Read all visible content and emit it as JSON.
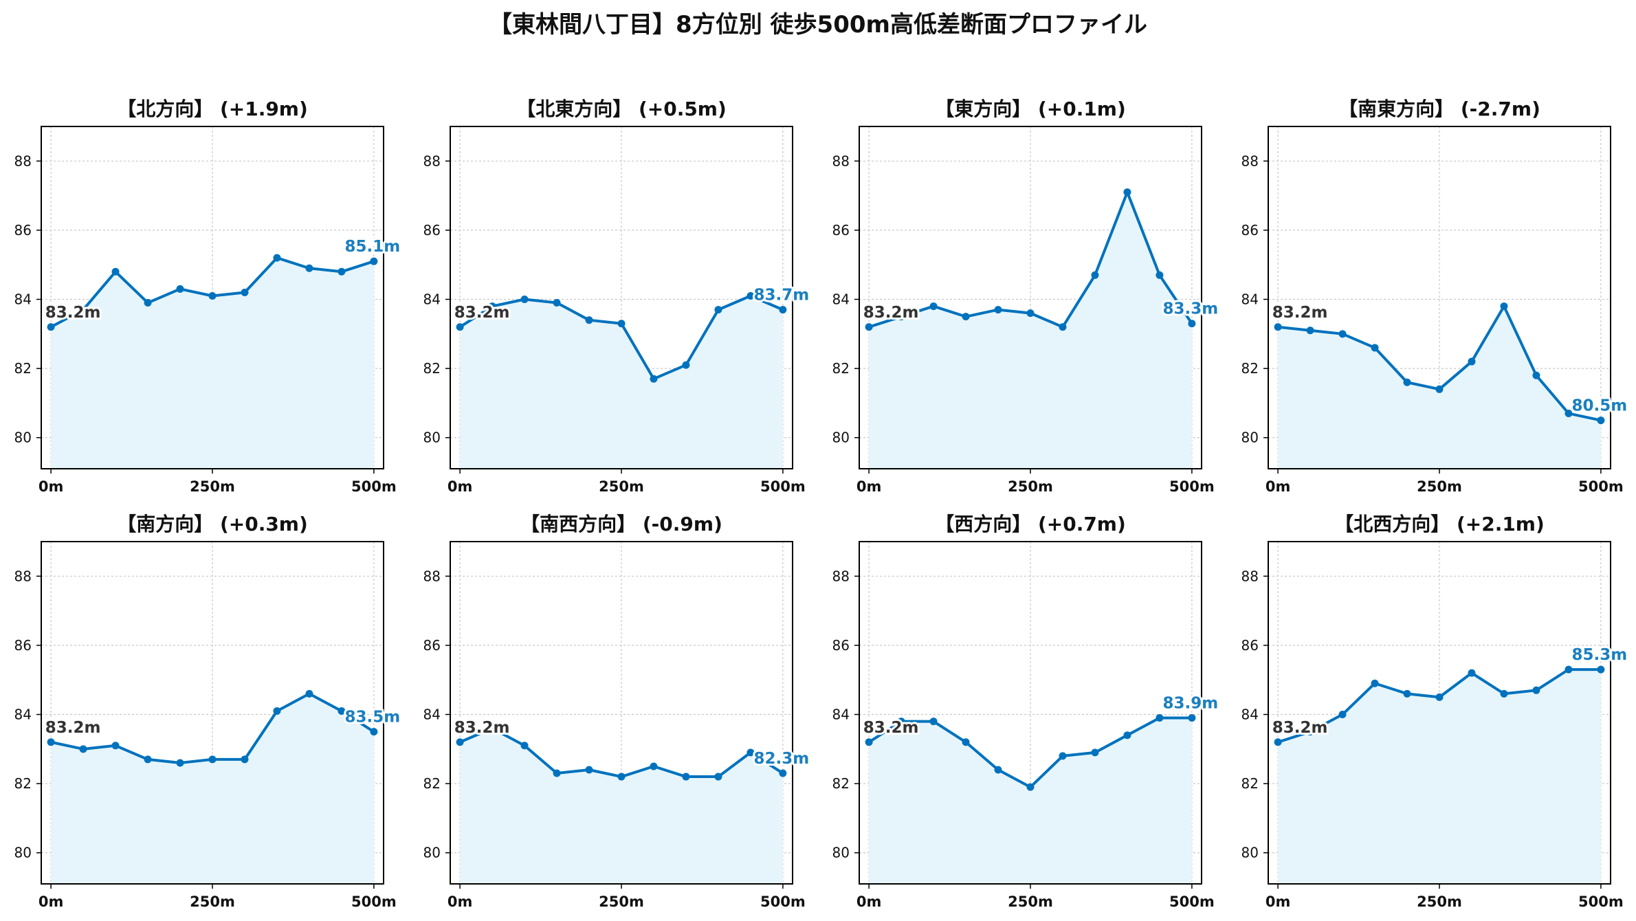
{
  "title": "【東林間八丁目】8方位別 徒歩500m高低差断面プロファイル",
  "colors": {
    "line": "#0072bd",
    "fill": "#e6f5fb",
    "axis": "#000000",
    "grid": "#c8c8c8",
    "start_label": "#333333",
    "end_label": "#1a7fc0"
  },
  "chart_data": [
    {
      "type": "line",
      "title": "【北方向】 (+1.9m)",
      "x": [
        0,
        50,
        100,
        150,
        200,
        250,
        300,
        350,
        400,
        450,
        500
      ],
      "y": [
        83.2,
        83.7,
        84.8,
        83.9,
        84.3,
        84.1,
        84.2,
        85.2,
        84.9,
        84.8,
        85.1
      ],
      "start_label": "83.2m",
      "end_label": "85.1m",
      "xticks": [
        "0m",
        "250m",
        "500m"
      ],
      "yticks": [
        "80",
        "82",
        "84",
        "86",
        "88"
      ],
      "xlim": [
        -15,
        515
      ],
      "ylim": [
        79.1,
        89.0
      ],
      "grid": true
    },
    {
      "type": "line",
      "title": "【北東方向】 (+0.5m)",
      "x": [
        0,
        50,
        100,
        150,
        200,
        250,
        300,
        350,
        400,
        450,
        500
      ],
      "y": [
        83.2,
        83.8,
        84.0,
        83.9,
        83.4,
        83.3,
        81.7,
        82.1,
        83.7,
        84.1,
        83.7
      ],
      "start_label": "83.2m",
      "end_label": "83.7m",
      "xticks": [
        "0m",
        "250m",
        "500m"
      ],
      "yticks": [
        "80",
        "82",
        "84",
        "86",
        "88"
      ],
      "xlim": [
        -15,
        515
      ],
      "ylim": [
        79.1,
        89.0
      ],
      "grid": true
    },
    {
      "type": "line",
      "title": "【東方向】 (+0.1m)",
      "x": [
        0,
        50,
        100,
        150,
        200,
        250,
        300,
        350,
        400,
        450,
        500
      ],
      "y": [
        83.2,
        83.5,
        83.8,
        83.5,
        83.7,
        83.6,
        83.2,
        84.7,
        87.1,
        84.7,
        83.3
      ],
      "start_label": "83.2m",
      "end_label": "83.3m",
      "xticks": [
        "0m",
        "250m",
        "500m"
      ],
      "yticks": [
        "80",
        "82",
        "84",
        "86",
        "88"
      ],
      "xlim": [
        -15,
        515
      ],
      "ylim": [
        79.1,
        89.0
      ],
      "grid": true
    },
    {
      "type": "line",
      "title": "【南東方向】 (-2.7m)",
      "x": [
        0,
        50,
        100,
        150,
        200,
        250,
        300,
        350,
        400,
        450,
        500
      ],
      "y": [
        83.2,
        83.1,
        83.0,
        82.6,
        81.6,
        81.4,
        82.2,
        83.8,
        81.8,
        80.7,
        80.5
      ],
      "start_label": "83.2m",
      "end_label": "80.5m",
      "xticks": [
        "0m",
        "250m",
        "500m"
      ],
      "yticks": [
        "80",
        "82",
        "84",
        "86",
        "88"
      ],
      "xlim": [
        -15,
        515
      ],
      "ylim": [
        79.1,
        89.0
      ],
      "grid": true
    },
    {
      "type": "line",
      "title": "【南方向】 (+0.3m)",
      "x": [
        0,
        50,
        100,
        150,
        200,
        250,
        300,
        350,
        400,
        450,
        500
      ],
      "y": [
        83.2,
        83.0,
        83.1,
        82.7,
        82.6,
        82.7,
        82.7,
        84.1,
        84.6,
        84.1,
        83.5
      ],
      "start_label": "83.2m",
      "end_label": "83.5m",
      "xticks": [
        "0m",
        "250m",
        "500m"
      ],
      "yticks": [
        "80",
        "82",
        "84",
        "86",
        "88"
      ],
      "xlim": [
        -15,
        515
      ],
      "ylim": [
        79.1,
        89.0
      ],
      "grid": true
    },
    {
      "type": "line",
      "title": "【南西方向】 (-0.9m)",
      "x": [
        0,
        50,
        100,
        150,
        200,
        250,
        300,
        350,
        400,
        450,
        500
      ],
      "y": [
        83.2,
        83.6,
        83.1,
        82.3,
        82.4,
        82.2,
        82.5,
        82.2,
        82.2,
        82.9,
        82.3
      ],
      "start_label": "83.2m",
      "end_label": "82.3m",
      "xticks": [
        "0m",
        "250m",
        "500m"
      ],
      "yticks": [
        "80",
        "82",
        "84",
        "86",
        "88"
      ],
      "xlim": [
        -15,
        515
      ],
      "ylim": [
        79.1,
        89.0
      ],
      "grid": true
    },
    {
      "type": "line",
      "title": "【西方向】 (+0.7m)",
      "x": [
        0,
        50,
        100,
        150,
        200,
        250,
        300,
        350,
        400,
        450,
        500
      ],
      "y": [
        83.2,
        83.8,
        83.8,
        83.2,
        82.4,
        81.9,
        82.8,
        82.9,
        83.4,
        83.9,
        83.9
      ],
      "start_label": "83.2m",
      "end_label": "83.9m",
      "xticks": [
        "0m",
        "250m",
        "500m"
      ],
      "yticks": [
        "80",
        "82",
        "84",
        "86",
        "88"
      ],
      "xlim": [
        -15,
        515
      ],
      "ylim": [
        79.1,
        89.0
      ],
      "grid": true
    },
    {
      "type": "line",
      "title": "【北西方向】 (+2.1m)",
      "x": [
        0,
        50,
        100,
        150,
        200,
        250,
        300,
        350,
        400,
        450,
        500
      ],
      "y": [
        83.2,
        83.5,
        84.0,
        84.9,
        84.6,
        84.5,
        85.2,
        84.6,
        84.7,
        85.3,
        85.3
      ],
      "start_label": "83.2m",
      "end_label": "85.3m",
      "xticks": [
        "0m",
        "250m",
        "500m"
      ],
      "yticks": [
        "80",
        "82",
        "84",
        "86",
        "88"
      ],
      "xlim": [
        -15,
        515
      ],
      "ylim": [
        79.1,
        89.0
      ],
      "grid": true
    }
  ]
}
